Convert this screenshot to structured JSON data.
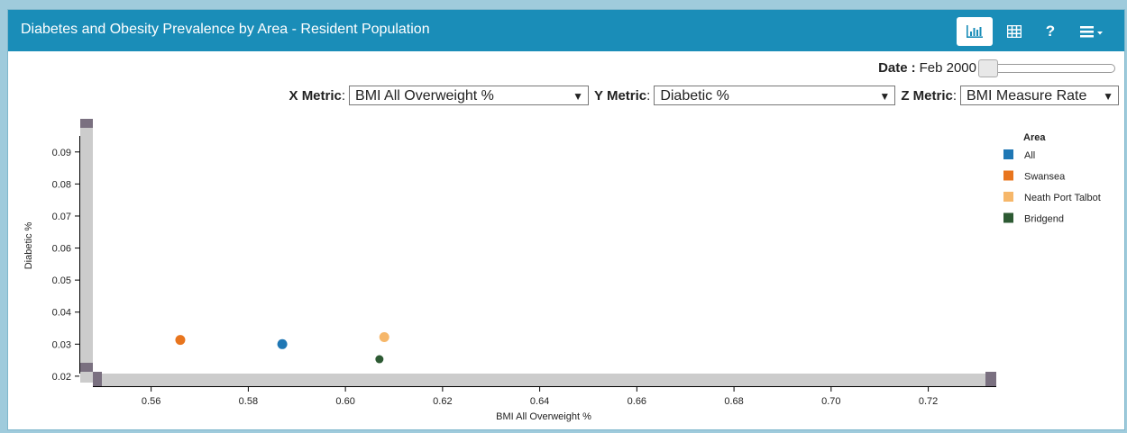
{
  "header": {
    "title": "Diabetes and Obesity Prevalence by Area - Resident Population",
    "icons": [
      "bar-chart-icon",
      "table-icon",
      "help-icon",
      "menu-icon"
    ],
    "help_glyph": "?",
    "bg_color": "#1a8db8"
  },
  "date": {
    "label": "Date",
    "value": "Feb 2000",
    "slider_fraction": 0
  },
  "metrics": {
    "x_label": "X Metric",
    "x_value": "BMI All Overweight %",
    "y_label": "Y Metric",
    "y_value": "Diabetic %",
    "z_label": "Z Metric",
    "z_value": "BMI Measure Rate"
  },
  "chart_data": {
    "type": "scatter",
    "xlabel": "BMI All Overweight %",
    "ylabel": "Diabetic %",
    "xlim": [
      0.548,
      0.734
    ],
    "ylim": [
      0.018,
      0.095
    ],
    "x_ticks": [
      "0.56",
      "0.58",
      "0.60",
      "0.62",
      "0.64",
      "0.66",
      "0.68",
      "0.70",
      "0.72"
    ],
    "y_ticks": [
      "0.02",
      "0.03",
      "0.04",
      "0.05",
      "0.06",
      "0.07",
      "0.08",
      "0.09"
    ],
    "legend_title": "Area",
    "legend_position": "right",
    "series": [
      {
        "name": "All",
        "color": "#1f77b4",
        "points": [
          {
            "x": 0.587,
            "y": 0.03
          }
        ]
      },
      {
        "name": "Swansea",
        "color": "#e8751e",
        "points": [
          {
            "x": 0.566,
            "y": 0.0313
          }
        ]
      },
      {
        "name": "Neath Port Talbot",
        "color": "#f6b76a",
        "points": [
          {
            "x": 0.608,
            "y": 0.0322
          }
        ]
      },
      {
        "name": "Bridgend",
        "color": "#2d5a33",
        "points": [
          {
            "x": 0.607,
            "y": 0.0253
          }
        ]
      }
    ]
  }
}
